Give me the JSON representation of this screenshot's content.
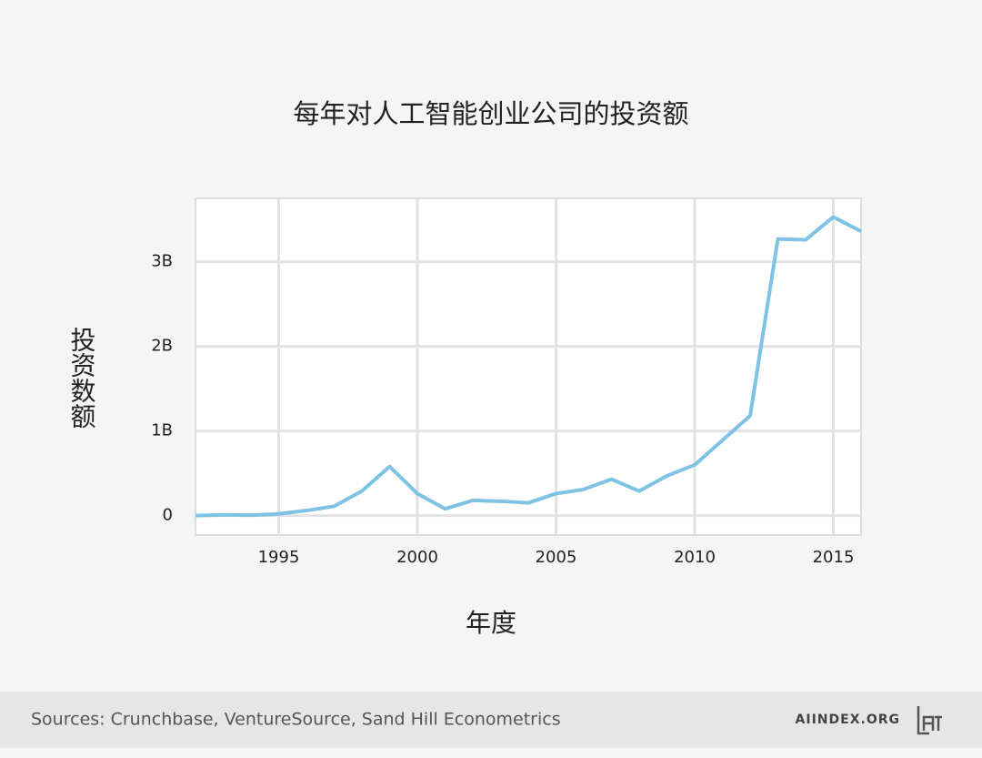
{
  "chart_data": {
    "type": "line",
    "title": "每年对人工智能创业公司的投资额",
    "x_label": "年度",
    "y_label": "投资数额",
    "x": [
      1992,
      1993,
      1994,
      1995,
      1996,
      1997,
      1998,
      1999,
      2000,
      2001,
      2002,
      2003,
      2004,
      2005,
      2006,
      2007,
      2008,
      2009,
      2010,
      2011,
      2012,
      2013,
      2014,
      2015,
      2016
    ],
    "series": [
      {
        "color": "#7fc3e4",
        "values": [
          0,
          10000000,
          5000000,
          20000000,
          60000000,
          110000000,
          290000000,
          580000000,
          260000000,
          80000000,
          180000000,
          170000000,
          150000000,
          260000000,
          310000000,
          430000000,
          290000000,
          470000000,
          600000000,
          890000000,
          1180000000,
          3270000000,
          3260000000,
          3530000000,
          3360000000
        ]
      }
    ],
    "xlim": [
      1992,
      2016
    ],
    "xticks": [
      1995,
      2000,
      2005,
      2010,
      2015
    ],
    "ylim": [
      -230000000,
      3750000000
    ],
    "yticks": [
      0,
      {
        "value": 1000000000,
        "label": "1B"
      },
      {
        "value": 2000000000,
        "label": "2B"
      },
      {
        "value": 3000000000,
        "label": "3B"
      }
    ],
    "grid": true
  },
  "footer": {
    "source": "Sources: Crunchbase, VentureSource, Sand Hill Econometrics",
    "site": "AIINDEX.ORG"
  }
}
